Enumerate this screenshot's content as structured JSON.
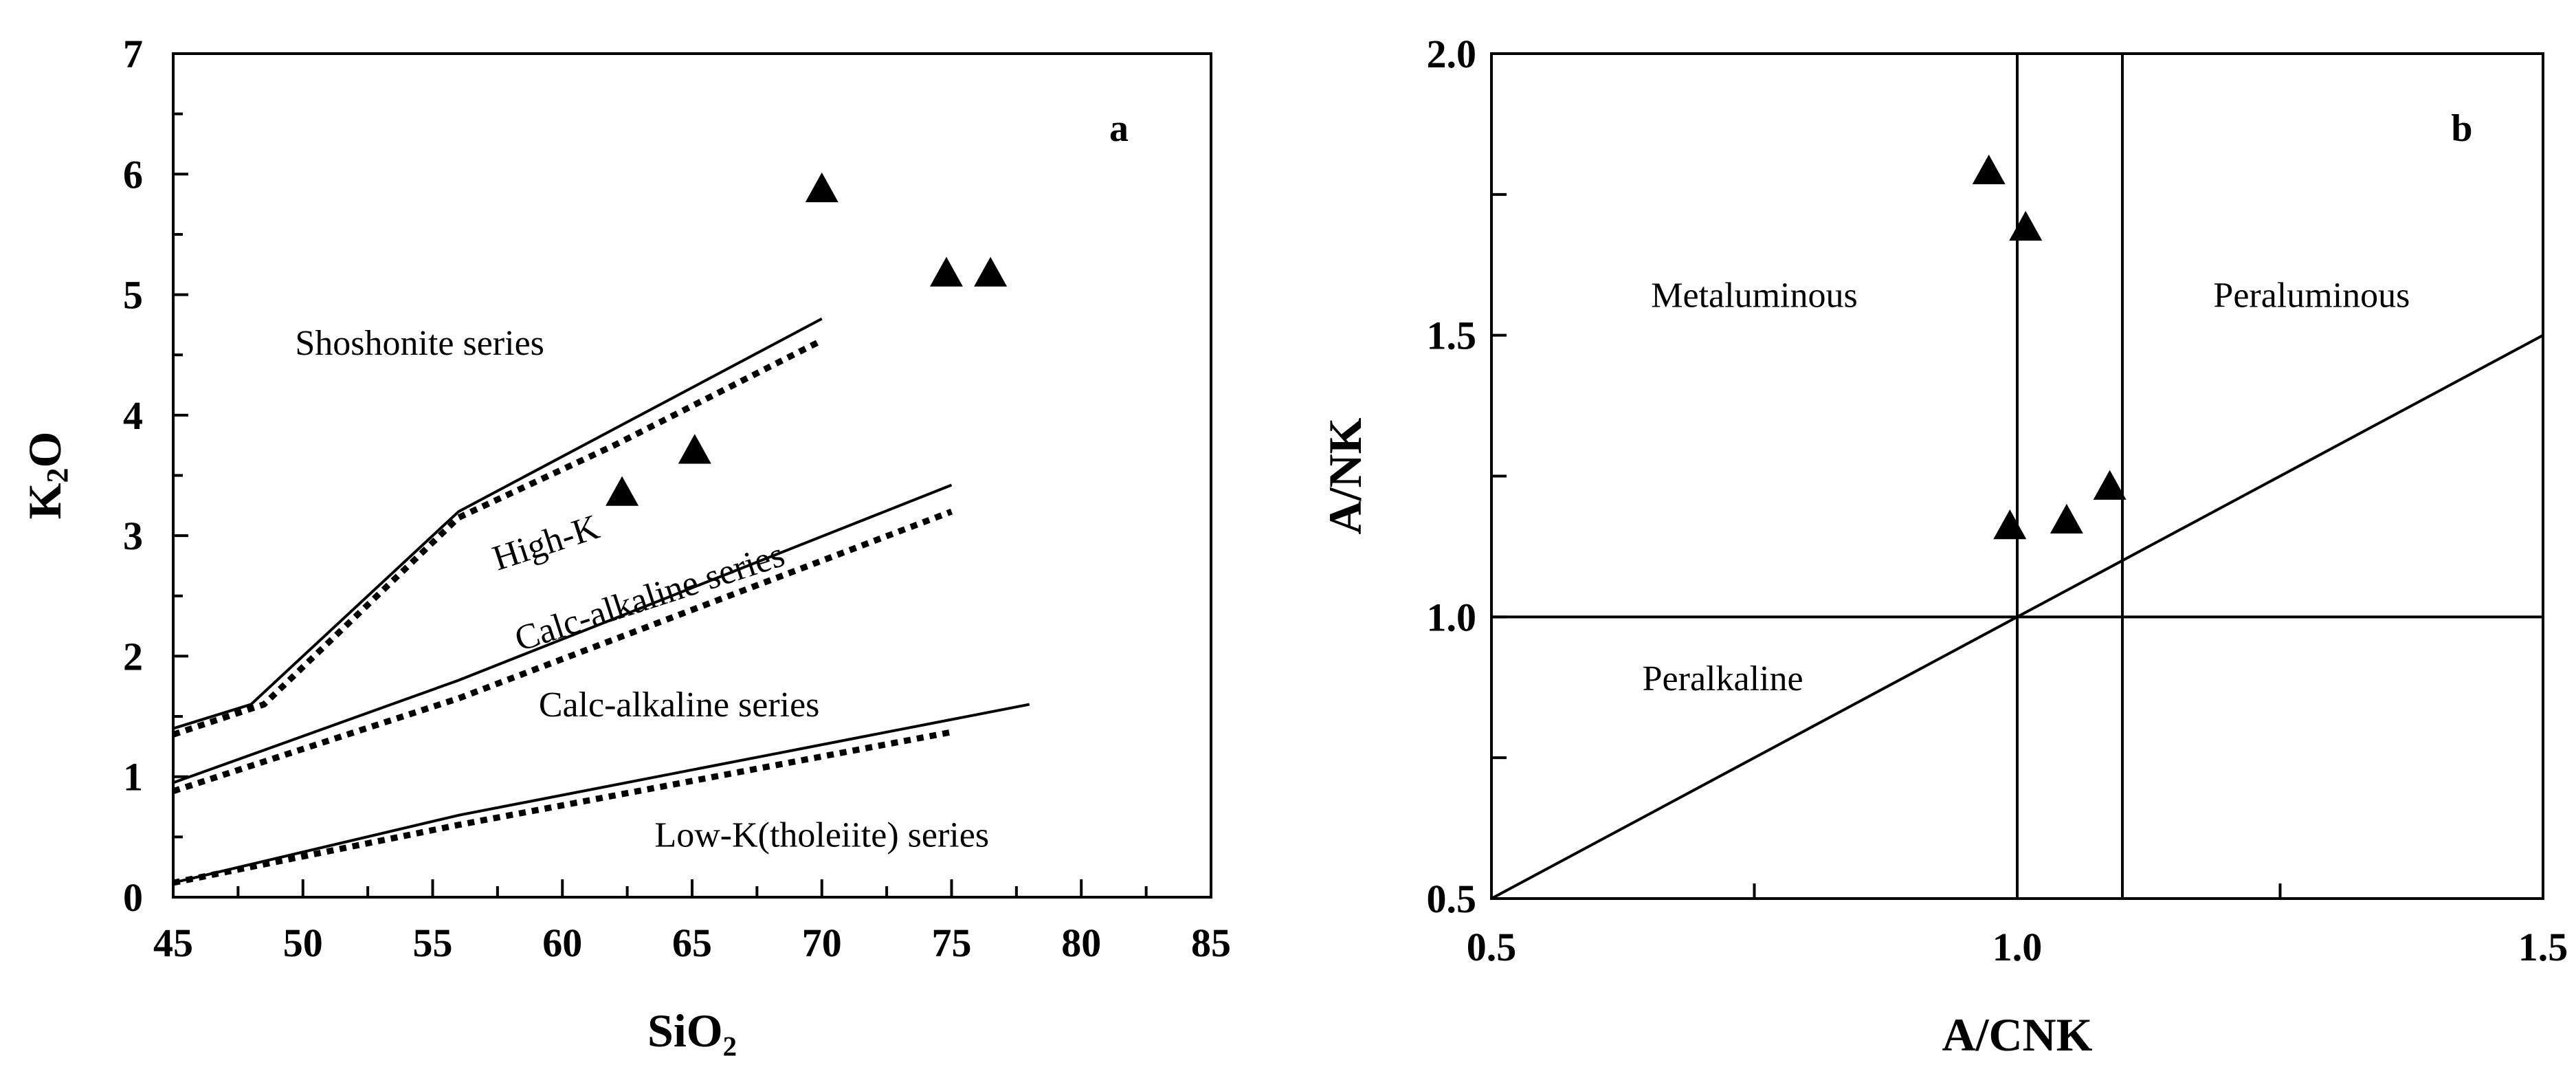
{
  "chart_data": [
    {
      "type": "scatter",
      "panel_label": "a",
      "xlabel": "SiO₂",
      "ylabel_main": "K",
      "ylabel_sub": "2",
      "ylabel_tail": "O",
      "xlim": [
        45,
        85
      ],
      "ylim": [
        0,
        7
      ],
      "x_tick_labels": [
        "45",
        "50",
        "55",
        "60",
        "65",
        "70",
        "75",
        "80",
        "85"
      ],
      "x_tick_values": [
        45,
        50,
        55,
        60,
        65,
        70,
        75,
        80,
        85
      ],
      "y_tick_labels": [
        "0",
        "1",
        "2",
        "3",
        "4",
        "5",
        "6",
        "7"
      ],
      "y_tick_values": [
        0,
        1,
        2,
        3,
        4,
        5,
        6,
        7
      ],
      "field_labels": [
        {
          "text": "Shoshonite series",
          "x": 54.5,
          "y": 4.5
        },
        {
          "text": "High-K",
          "x": 59.5,
          "y": 2.85
        },
        {
          "text": "Calc-alkaline series",
          "x": 63.5,
          "y": 2.4
        },
        {
          "text": "Calc-alkaline series",
          "x": 64.5,
          "y": 1.5
        },
        {
          "text": "Low-K(tholeiite) series",
          "x": 70,
          "y": 0.42
        }
      ],
      "boundary_lines": [
        {
          "name": "shoshonite-highk-boundary",
          "style": "solid",
          "points": [
            [
              45,
              1.4
            ],
            [
              48,
              1.6
            ],
            [
              56,
              3.2
            ],
            [
              70,
              4.8
            ]
          ]
        },
        {
          "name": "shoshonite-highk-boundary-alt",
          "style": "dotted",
          "points": [
            [
              45,
              1.35
            ],
            [
              48.5,
              1.6
            ],
            [
              56,
              3.15
            ],
            [
              62,
              3.75
            ],
            [
              70,
              4.62
            ]
          ]
        },
        {
          "name": "highk-calcalkaline-boundary",
          "style": "solid",
          "points": [
            [
              45,
              0.95
            ],
            [
              56,
              1.8
            ],
            [
              75,
              3.42
            ]
          ]
        },
        {
          "name": "highk-calcalkaline-boundary-alt",
          "style": "dotted",
          "points": [
            [
              45,
              0.88
            ],
            [
              56,
              1.65
            ],
            [
              75,
              3.2
            ]
          ]
        },
        {
          "name": "calcalkaline-lowk-boundary",
          "style": "solid",
          "points": [
            [
              45,
              0.12
            ],
            [
              56,
              0.68
            ],
            [
              78,
              1.6
            ]
          ]
        },
        {
          "name": "calcalkaline-lowk-boundary-alt",
          "style": "dotted",
          "points": [
            [
              45,
              0.12
            ],
            [
              56,
              0.6
            ],
            [
              75,
              1.37
            ]
          ]
        }
      ],
      "series": [
        {
          "name": "samples",
          "marker": "triangle",
          "points": [
            [
              62.3,
              3.35
            ],
            [
              65.1,
              3.7
            ],
            [
              70.0,
              5.87
            ],
            [
              74.8,
              5.17
            ],
            [
              76.5,
              5.17
            ]
          ]
        }
      ]
    },
    {
      "type": "scatter",
      "panel_label": "b",
      "xlabel": "A/CNK",
      "ylabel": "A/NK",
      "xlim": [
        0.5,
        1.5
      ],
      "ylim": [
        0.5,
        2.0
      ],
      "x_tick_labels": [
        "0.5",
        "1.0",
        "1.5"
      ],
      "x_tick_values": [
        0.5,
        1.0,
        1.5
      ],
      "y_tick_labels": [
        "0.5",
        "1.0",
        "1.5",
        "2.0"
      ],
      "y_tick_values": [
        0.5,
        1.0,
        1.5,
        2.0
      ],
      "field_labels": [
        {
          "text": "Metaluminous",
          "x": 0.75,
          "y": 1.55
        },
        {
          "text": "Peraluminous",
          "x": 1.28,
          "y": 1.55
        },
        {
          "text": "Peralkaline",
          "x": 0.72,
          "y": 0.87
        }
      ],
      "reference_lines": [
        {
          "name": "vertical-acnk-1.0",
          "points": [
            [
              1.0,
              0.5
            ],
            [
              1.0,
              2.0
            ]
          ]
        },
        {
          "name": "vertical-acnk-1.1",
          "points": [
            [
              1.1,
              0.5
            ],
            [
              1.1,
              2.0
            ]
          ]
        },
        {
          "name": "horizontal-ank-1.0",
          "points": [
            [
              0.5,
              1.0
            ],
            [
              1.5,
              1.0
            ]
          ]
        },
        {
          "name": "diagonal-acnk-equals-ank",
          "points": [
            [
              0.5,
              0.5
            ],
            [
              1.5,
              1.5
            ]
          ]
        }
      ],
      "series": [
        {
          "name": "samples",
          "marker": "triangle",
          "points": [
            [
              0.973,
              1.79
            ],
            [
              1.008,
              1.69
            ],
            [
              0.993,
              1.16
            ],
            [
              1.047,
              1.17
            ],
            [
              1.088,
              1.23
            ]
          ]
        }
      ]
    }
  ]
}
